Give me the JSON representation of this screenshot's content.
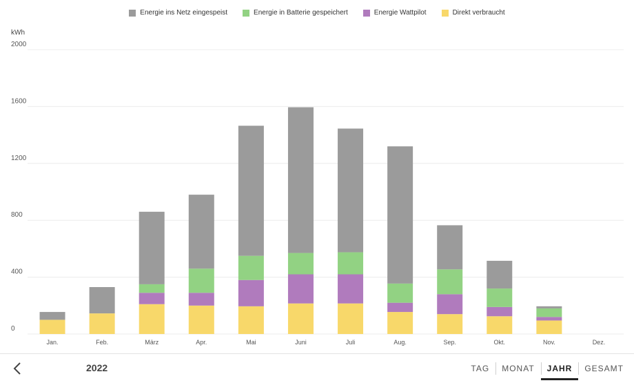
{
  "legend": [
    {
      "label": "Energie ins Netz eingespeist",
      "color": "#9b9b9b"
    },
    {
      "label": "Energie in Batterie gespeichert",
      "color": "#92d283"
    },
    {
      "label": "Energie Wattpilot",
      "color": "#b07bbd"
    },
    {
      "label": "Direkt verbraucht",
      "color": "#f8d86a"
    }
  ],
  "chart_data": {
    "type": "bar",
    "stacked": true,
    "ylabel": "kWh",
    "ylim": [
      0,
      2000
    ],
    "yticks": [
      0,
      400,
      800,
      1200,
      1600,
      2000
    ],
    "grid": true,
    "legend_position": "top-center",
    "categories": [
      "Jan.",
      "Feb.",
      "März",
      "Apr.",
      "Mai",
      "Juni",
      "Juli",
      "Aug.",
      "Sep.",
      "Okt.",
      "Nov.",
      "Dez."
    ],
    "series": [
      {
        "name": "Direkt verbraucht",
        "color": "#f8d86a",
        "values": [
          100,
          145,
          210,
          200,
          195,
          215,
          215,
          155,
          140,
          125,
          95,
          0
        ]
      },
      {
        "name": "Energie Wattpilot",
        "color": "#b07bbd",
        "values": [
          0,
          0,
          80,
          90,
          185,
          205,
          205,
          65,
          140,
          65,
          25,
          0
        ]
      },
      {
        "name": "Energie in Batterie gespeichert",
        "color": "#92d283",
        "values": [
          0,
          0,
          60,
          170,
          170,
          150,
          155,
          135,
          175,
          130,
          60,
          0
        ]
      },
      {
        "name": "Energie ins Netz eingespeist",
        "color": "#9b9b9b",
        "values": [
          55,
          185,
          510,
          520,
          915,
          1025,
          870,
          965,
          310,
          195,
          15,
          0
        ]
      }
    ]
  },
  "footer": {
    "back_label": "back",
    "year": "2022",
    "tabs": [
      {
        "label": "TAG",
        "active": false
      },
      {
        "label": "MONAT",
        "active": false
      },
      {
        "label": "JAHR",
        "active": true
      },
      {
        "label": "GESAMT",
        "active": false
      }
    ]
  }
}
